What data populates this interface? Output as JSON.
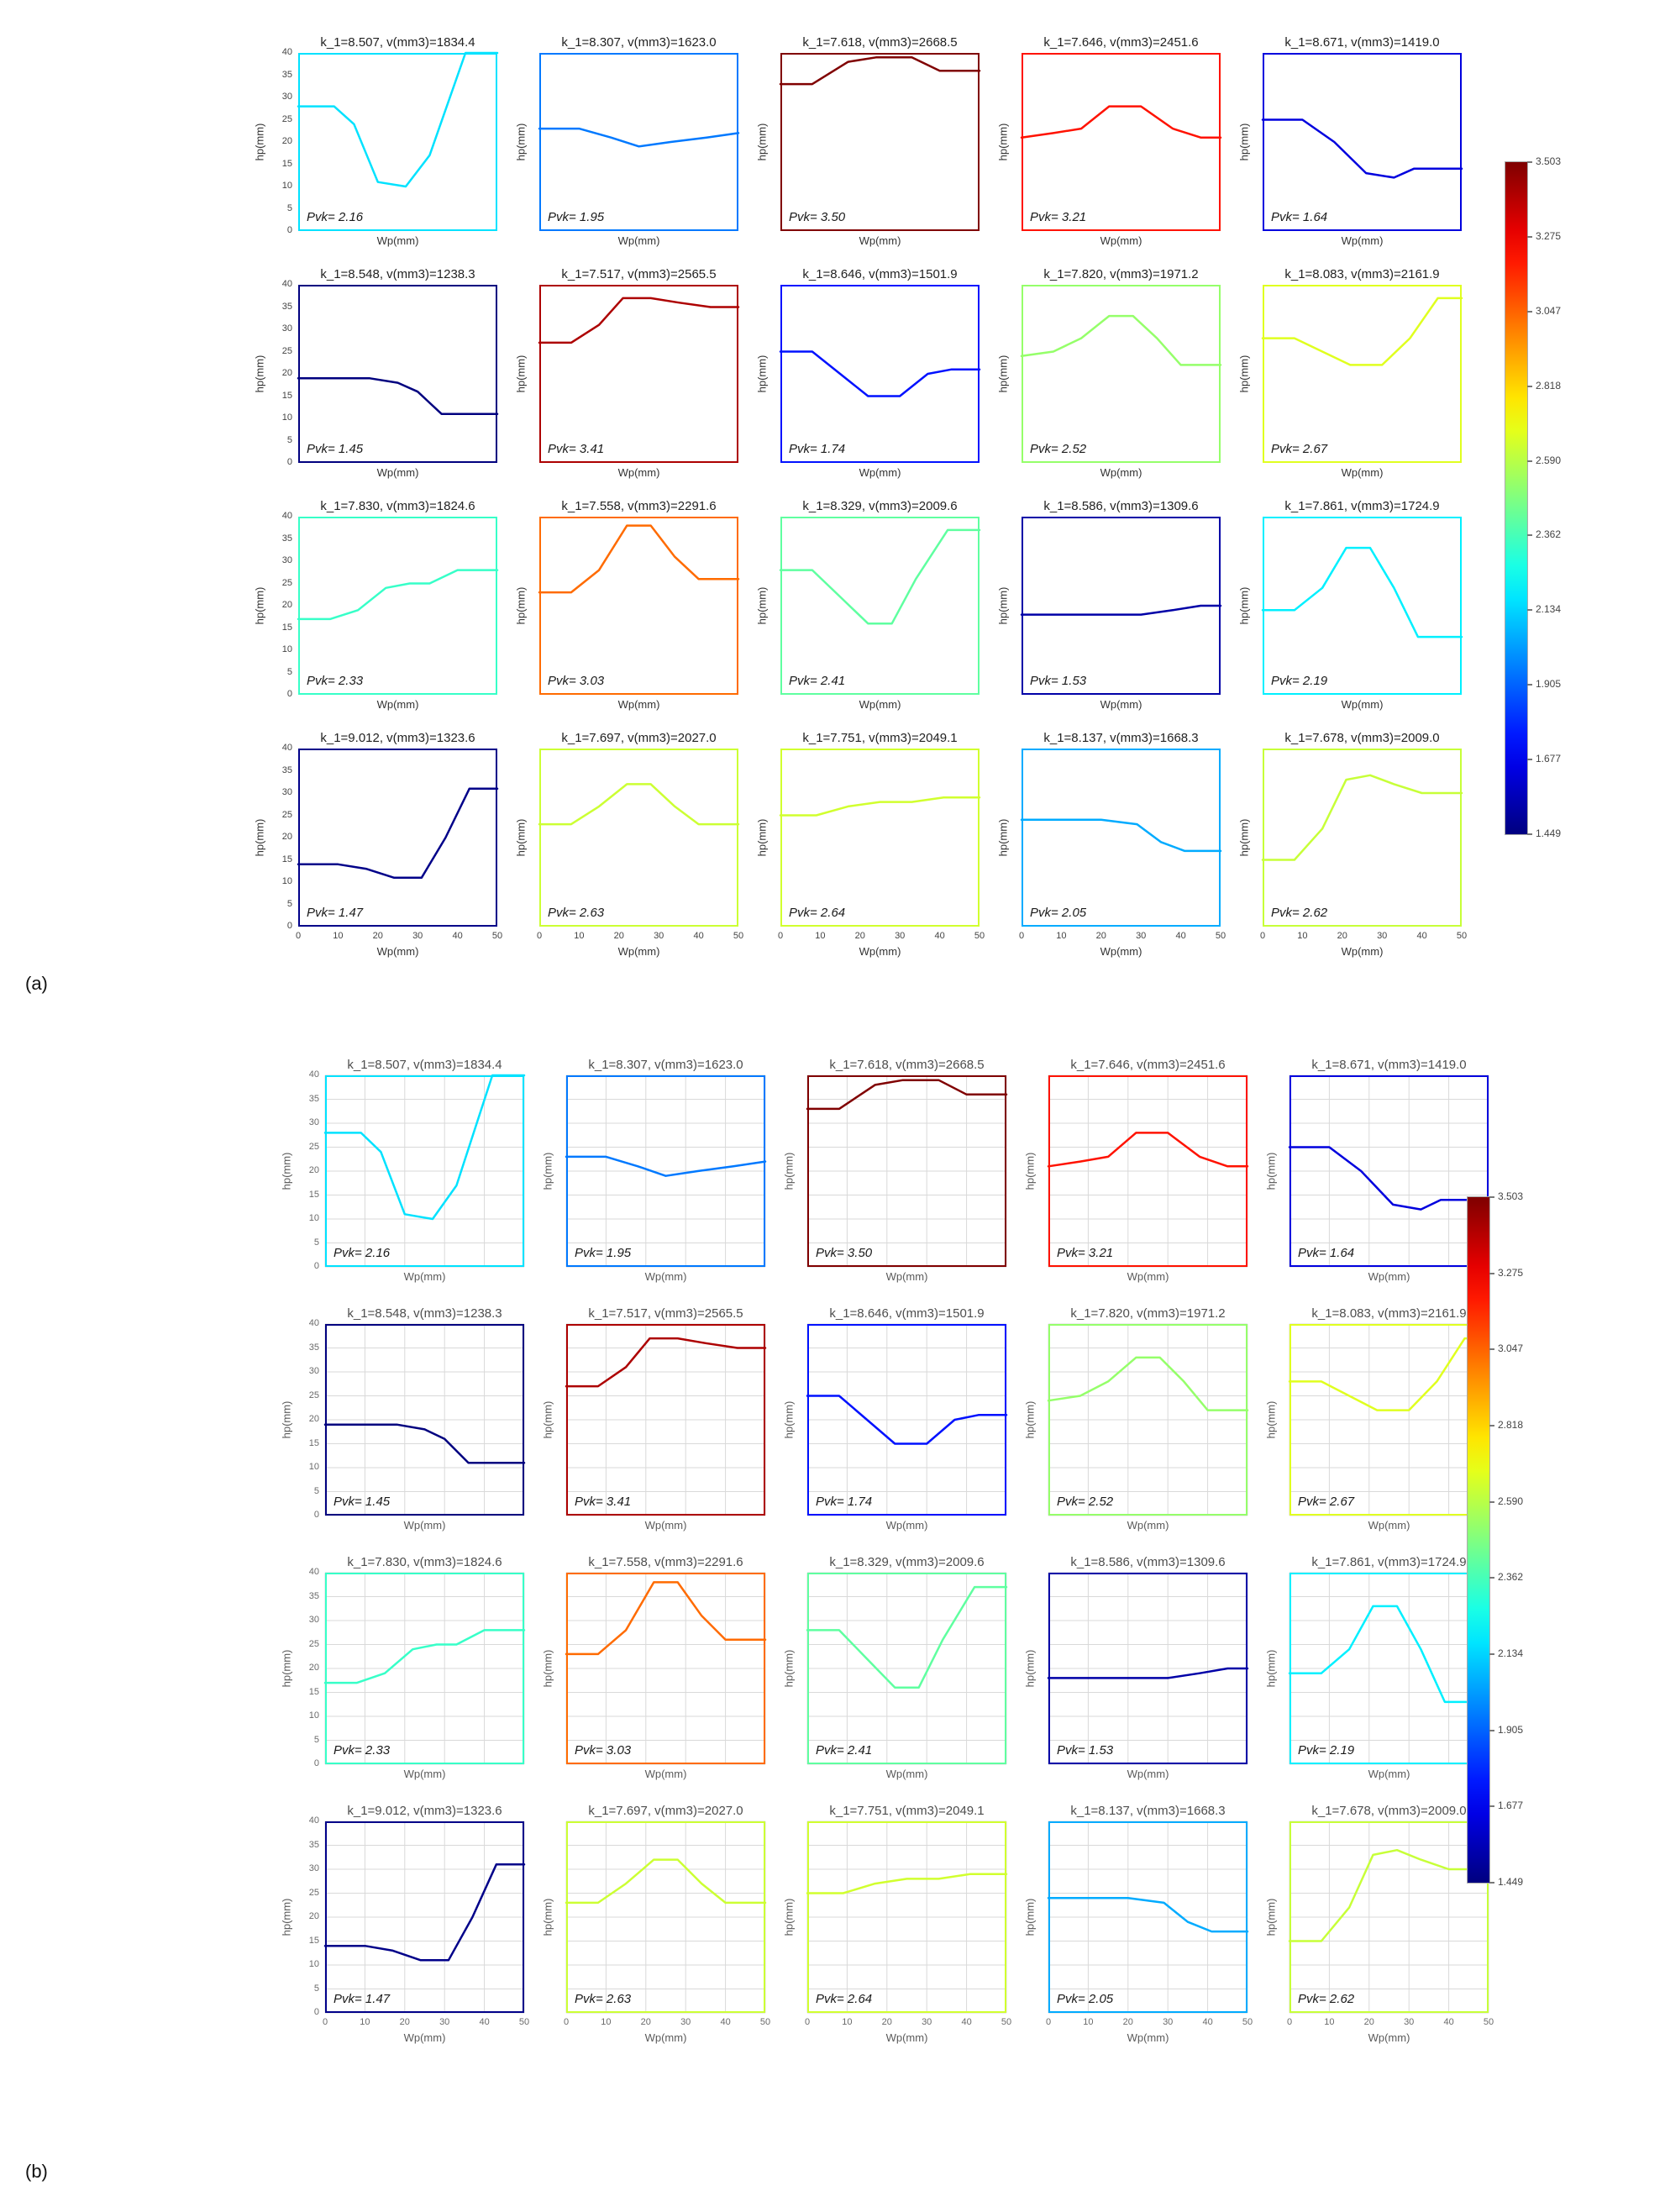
{
  "figure": {
    "panel_a_label": "(a)",
    "panel_b_label": "(b)"
  },
  "axes": {
    "xlabel": "Wp(mm)",
    "ylabel": "hp(mm)",
    "x_ticks": [
      0,
      10,
      20,
      30,
      40,
      50
    ],
    "y_ticks": [
      0,
      5,
      10,
      15,
      20,
      25,
      30,
      35,
      40
    ],
    "xlim": [
      0,
      50
    ],
    "ylim": [
      0,
      40
    ]
  },
  "colorbar": {
    "vmin": 1.449,
    "vmax": 3.503,
    "tick_labels": [
      "3.503",
      "3.275",
      "3.047",
      "2.818",
      "2.590",
      "2.362",
      "2.134",
      "1.905",
      "1.677",
      "1.449"
    ]
  },
  "chart_data": {
    "type": "line",
    "layout": "4x5 grid of subplots, repeated in panel (a) without gridlines and panel (b) with gridlines",
    "xlabel": "Wp(mm)",
    "ylabel": "hp(mm)",
    "xlim": [
      0,
      50
    ],
    "ylim": [
      0,
      40
    ],
    "color_encoding": "line and frame color encode Pvk on a jet colormap spanning 1.449 to 3.503",
    "charts": [
      {
        "title": "k_1=8.507, v(mm3)=1834.4",
        "k_1": 8.507,
        "v_mm3": 1834.4,
        "pvk": 2.16,
        "pvk_label": "Pvk= 2.16",
        "x": [
          0,
          9,
          14,
          20,
          27,
          33,
          42,
          50
        ],
        "y": [
          28,
          28,
          24,
          11,
          10,
          17,
          40,
          40
        ]
      },
      {
        "title": "k_1=8.307, v(mm3)=1623.0",
        "k_1": 8.307,
        "v_mm3": 1623.0,
        "pvk": 1.95,
        "pvk_label": "Pvk= 1.95",
        "x": [
          0,
          10,
          18,
          25,
          33,
          42,
          50
        ],
        "y": [
          23,
          23,
          21,
          19,
          20,
          21,
          22
        ]
      },
      {
        "title": "k_1=7.618, v(mm3)=2668.5",
        "k_1": 7.618,
        "v_mm3": 2668.5,
        "pvk": 3.5,
        "pvk_label": "Pvk= 3.50",
        "x": [
          0,
          8,
          17,
          24,
          33,
          40,
          50
        ],
        "y": [
          33,
          33,
          38,
          39,
          39,
          36,
          36
        ]
      },
      {
        "title": "k_1=7.646, v(mm3)=2451.6",
        "k_1": 7.646,
        "v_mm3": 2451.6,
        "pvk": 3.21,
        "pvk_label": "Pvk= 3.21",
        "x": [
          0,
          8,
          15,
          22,
          30,
          38,
          45,
          50
        ],
        "y": [
          21,
          22,
          23,
          28,
          28,
          23,
          21,
          21
        ]
      },
      {
        "title": "k_1=8.671, v(mm3)=1419.0",
        "k_1": 8.671,
        "v_mm3": 1419.0,
        "pvk": 1.64,
        "pvk_label": "Pvk= 1.64",
        "x": [
          0,
          10,
          18,
          26,
          33,
          38,
          44,
          50
        ],
        "y": [
          25,
          25,
          20,
          13,
          12,
          14,
          14,
          14
        ]
      },
      {
        "title": "k_1=8.548, v(mm3)=1238.3",
        "k_1": 8.548,
        "v_mm3": 1238.3,
        "pvk": 1.45,
        "pvk_label": "Pvk= 1.45",
        "x": [
          0,
          10,
          18,
          25,
          30,
          36,
          43,
          50
        ],
        "y": [
          19,
          19,
          19,
          18,
          16,
          11,
          11,
          11
        ]
      },
      {
        "title": "k_1=7.517, v(mm3)=2565.5",
        "k_1": 7.517,
        "v_mm3": 2565.5,
        "pvk": 3.41,
        "pvk_label": "Pvk= 3.41",
        "x": [
          0,
          8,
          15,
          21,
          28,
          35,
          43,
          50
        ],
        "y": [
          27,
          27,
          31,
          37,
          37,
          36,
          35,
          35
        ]
      },
      {
        "title": "k_1=8.646, v(mm3)=1501.9",
        "k_1": 8.646,
        "v_mm3": 1501.9,
        "pvk": 1.74,
        "pvk_label": "Pvk= 1.74",
        "x": [
          0,
          8,
          15,
          22,
          30,
          37,
          43,
          50
        ],
        "y": [
          25,
          25,
          20,
          15,
          15,
          20,
          21,
          21
        ]
      },
      {
        "title": "k_1=7.820, v(mm3)=1971.2",
        "k_1": 7.82,
        "v_mm3": 1971.2,
        "pvk": 2.52,
        "pvk_label": "Pvk= 2.52",
        "x": [
          0,
          8,
          15,
          22,
          28,
          34,
          40,
          50
        ],
        "y": [
          24,
          25,
          28,
          33,
          33,
          28,
          22,
          22
        ]
      },
      {
        "title": "k_1=8.083, v(mm3)=2161.9",
        "k_1": 8.083,
        "v_mm3": 2161.9,
        "pvk": 2.67,
        "pvk_label": "Pvk= 2.67",
        "x": [
          0,
          8,
          15,
          22,
          30,
          37,
          44,
          50
        ],
        "y": [
          28,
          28,
          25,
          22,
          22,
          28,
          37,
          37
        ]
      },
      {
        "title": "k_1=7.830, v(mm3)=1824.6",
        "k_1": 7.83,
        "v_mm3": 1824.6,
        "pvk": 2.33,
        "pvk_label": "Pvk= 2.33",
        "x": [
          0,
          8,
          15,
          22,
          28,
          33,
          40,
          50
        ],
        "y": [
          17,
          17,
          19,
          24,
          25,
          25,
          28,
          28
        ]
      },
      {
        "title": "k_1=7.558, v(mm3)=2291.6",
        "k_1": 7.558,
        "v_mm3": 2291.6,
        "pvk": 3.03,
        "pvk_label": "Pvk= 3.03",
        "x": [
          0,
          8,
          15,
          22,
          28,
          34,
          40,
          50
        ],
        "y": [
          23,
          23,
          28,
          38,
          38,
          31,
          26,
          26
        ]
      },
      {
        "title": "k_1=8.329, v(mm3)=2009.6",
        "k_1": 8.329,
        "v_mm3": 2009.6,
        "pvk": 2.41,
        "pvk_label": "Pvk= 2.41",
        "x": [
          0,
          8,
          15,
          22,
          28,
          34,
          42,
          50
        ],
        "y": [
          28,
          28,
          22,
          16,
          16,
          26,
          37,
          37
        ]
      },
      {
        "title": "k_1=8.586, v(mm3)=1309.6",
        "k_1": 8.586,
        "v_mm3": 1309.6,
        "pvk": 1.53,
        "pvk_label": "Pvk= 1.53",
        "x": [
          0,
          10,
          20,
          30,
          38,
          45,
          50
        ],
        "y": [
          18,
          18,
          18,
          18,
          19,
          20,
          20
        ]
      },
      {
        "title": "k_1=7.861, v(mm3)=1724.9",
        "k_1": 7.861,
        "v_mm3": 1724.9,
        "pvk": 2.19,
        "pvk_label": "Pvk= 2.19",
        "x": [
          0,
          8,
          15,
          21,
          27,
          33,
          39,
          44,
          50
        ],
        "y": [
          19,
          19,
          24,
          33,
          33,
          24,
          13,
          13,
          13
        ]
      },
      {
        "title": "k_1=9.012, v(mm3)=1323.6",
        "k_1": 9.012,
        "v_mm3": 1323.6,
        "pvk": 1.47,
        "pvk_label": "Pvk= 1.47",
        "x": [
          0,
          10,
          17,
          24,
          31,
          37,
          43,
          50
        ],
        "y": [
          14,
          14,
          13,
          11,
          11,
          20,
          31,
          31
        ]
      },
      {
        "title": "k_1=7.697, v(mm3)=2027.0",
        "k_1": 7.697,
        "v_mm3": 2027.0,
        "pvk": 2.63,
        "pvk_label": "Pvk= 2.63",
        "x": [
          0,
          8,
          15,
          22,
          28,
          34,
          40,
          50
        ],
        "y": [
          23,
          23,
          27,
          32,
          32,
          27,
          23,
          23
        ]
      },
      {
        "title": "k_1=7.751, v(mm3)=2049.1",
        "k_1": 7.751,
        "v_mm3": 2049.1,
        "pvk": 2.64,
        "pvk_label": "Pvk= 2.64",
        "x": [
          0,
          9,
          17,
          25,
          33,
          41,
          50
        ],
        "y": [
          25,
          25,
          27,
          28,
          28,
          29,
          29
        ]
      },
      {
        "title": "k_1=8.137, v(mm3)=1668.3",
        "k_1": 8.137,
        "v_mm3": 1668.3,
        "pvk": 2.05,
        "pvk_label": "Pvk= 2.05",
        "x": [
          0,
          10,
          20,
          29,
          35,
          41,
          50
        ],
        "y": [
          24,
          24,
          24,
          23,
          19,
          17,
          17
        ]
      },
      {
        "title": "k_1=7.678, v(mm3)=2009.0",
        "k_1": 7.678,
        "v_mm3": 2009.0,
        "pvk": 2.62,
        "pvk_label": "Pvk= 2.62",
        "x": [
          0,
          8,
          15,
          21,
          27,
          33,
          40,
          50
        ],
        "y": [
          15,
          15,
          22,
          33,
          34,
          32,
          30,
          30
        ]
      }
    ]
  }
}
